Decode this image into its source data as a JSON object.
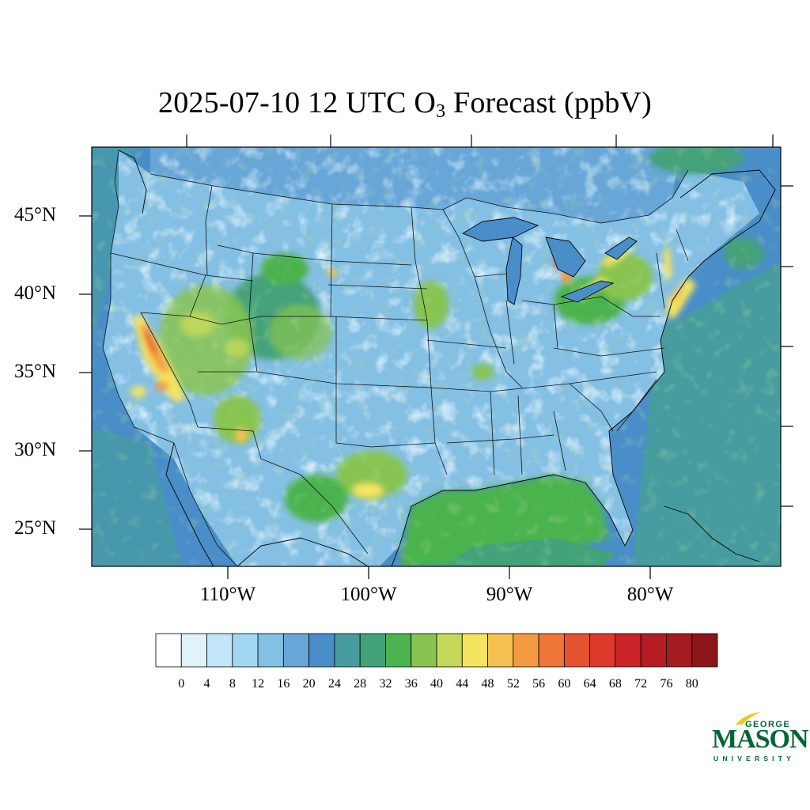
{
  "title": {
    "prefix": "2025-07-10 12 UTC O",
    "subscript": "3",
    "suffix": " Forecast (ppbV)"
  },
  "map": {
    "projection": "Lambert conformal conic",
    "region": "Contiguous United States",
    "field": "O3 surface concentration"
  },
  "latitude_labels": [
    "45°N",
    "40°N",
    "35°N",
    "30°N",
    "25°N"
  ],
  "longitude_labels": [
    "110°W",
    "100°W",
    "90°W",
    "80°W"
  ],
  "colorbar": {
    "tick_labels": [
      "0",
      "4",
      "8",
      "12",
      "16",
      "20",
      "24",
      "28",
      "32",
      "36",
      "40",
      "44",
      "48",
      "52",
      "56",
      "60",
      "64",
      "68",
      "72",
      "76",
      "80"
    ],
    "colors": [
      "#ffffff",
      "#e0f3fb",
      "#c2e6f7",
      "#a2d7f3",
      "#84bfe4",
      "#68a6d8",
      "#4a8ec9",
      "#469c9f",
      "#44a27a",
      "#4cb34e",
      "#88c451",
      "#c4d95a",
      "#f4e45e",
      "#f5c150",
      "#f49b41",
      "#f07538",
      "#e5522f",
      "#dd3a2c",
      "#cc2329",
      "#b31d23",
      "#a41b20",
      "#8b1518"
    ]
  },
  "logo": {
    "line1": "GEORGE",
    "line2": "MASON",
    "line3": "UNIVERSITY",
    "color": "#006633",
    "accent": "#f5c518"
  }
}
